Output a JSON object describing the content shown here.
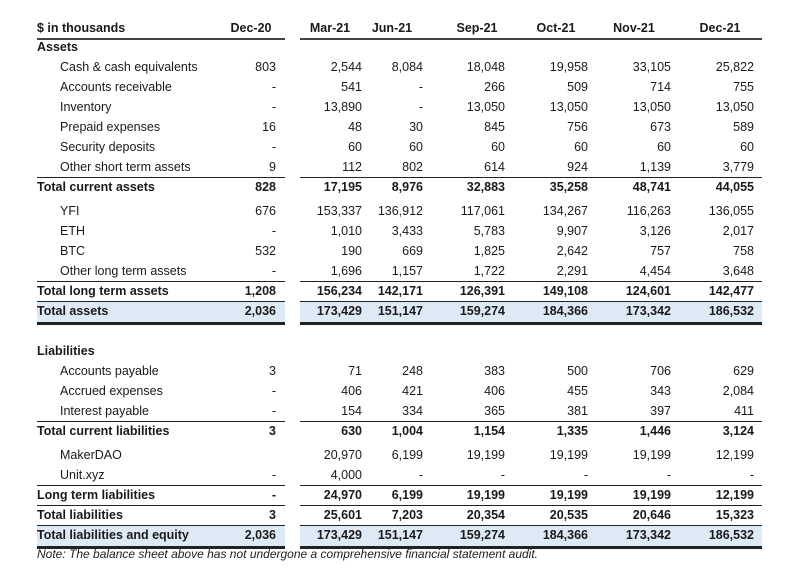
{
  "header": {
    "label": "$ in thousands",
    "columns": [
      "Dec-20",
      "Mar-21",
      "Jun-21",
      "Sep-21",
      "Oct-21",
      "Nov-21",
      "Dec-21"
    ]
  },
  "rows": [
    {
      "label": "Assets",
      "style": "section",
      "values": []
    },
    {
      "label": "Cash & cash equivalents",
      "style": "item",
      "values": [
        "803",
        "2,544",
        "8,084",
        "18,048",
        "19,958",
        "33,105",
        "25,822"
      ]
    },
    {
      "label": "Accounts receivable",
      "style": "item",
      "values": [
        "-",
        "541",
        "-",
        "266",
        "509",
        "714",
        "755"
      ]
    },
    {
      "label": "Inventory",
      "style": "item",
      "values": [
        "-",
        "13,890",
        "-",
        "13,050",
        "13,050",
        "13,050",
        "13,050"
      ]
    },
    {
      "label": "Prepaid expenses",
      "style": "item",
      "values": [
        "16",
        "48",
        "30",
        "845",
        "756",
        "673",
        "589"
      ]
    },
    {
      "label": "Security deposits",
      "style": "item",
      "values": [
        "-",
        "60",
        "60",
        "60",
        "60",
        "60",
        "60"
      ]
    },
    {
      "label": "Other short term assets",
      "style": "item-last",
      "values": [
        "9",
        "112",
        "802",
        "614",
        "924",
        "1,139",
        "3,779"
      ]
    },
    {
      "label": "Total current assets",
      "style": "subtotal",
      "values": [
        "828",
        "17,195",
        "8,976",
        "32,883",
        "35,258",
        "48,741",
        "44,055"
      ]
    },
    {
      "label": "YFI",
      "style": "item",
      "values": [
        "676",
        "153,337",
        "136,912",
        "117,061",
        "134,267",
        "116,263",
        "136,055"
      ]
    },
    {
      "label": "ETH",
      "style": "item",
      "values": [
        "-",
        "1,010",
        "3,433",
        "5,783",
        "9,907",
        "3,126",
        "2,017"
      ]
    },
    {
      "label": "BTC",
      "style": "item",
      "values": [
        "532",
        "190",
        "669",
        "1,825",
        "2,642",
        "757",
        "758"
      ]
    },
    {
      "label": "Other long term assets",
      "style": "item-last",
      "values": [
        "-",
        "1,696",
        "1,157",
        "1,722",
        "2,291",
        "4,454",
        "3,648"
      ]
    },
    {
      "label": "Total long term assets",
      "style": "subtotal-ruled",
      "values": [
        "1,208",
        "156,234",
        "142,171",
        "126,391",
        "149,108",
        "124,601",
        "142,477"
      ]
    },
    {
      "label": "Total assets",
      "style": "total",
      "values": [
        "2,036",
        "173,429",
        "151,147",
        "159,274",
        "184,366",
        "173,342",
        "186,532"
      ]
    },
    {
      "label": "Liabilities",
      "style": "section",
      "values": []
    },
    {
      "label": "Accounts payable",
      "style": "item",
      "values": [
        "3",
        "71",
        "248",
        "383",
        "500",
        "706",
        "629"
      ]
    },
    {
      "label": "Accrued expenses",
      "style": "item",
      "values": [
        "-",
        "406",
        "421",
        "406",
        "455",
        "343",
        "2,084"
      ]
    },
    {
      "label": "Interest payable",
      "style": "item-last",
      "values": [
        "-",
        "154",
        "334",
        "365",
        "381",
        "397",
        "411"
      ]
    },
    {
      "label": "Total current liabilities",
      "style": "subtotal",
      "values": [
        "3",
        "630",
        "1,004",
        "1,154",
        "1,335",
        "1,446",
        "3,124"
      ]
    },
    {
      "label": "MakerDAO",
      "style": "item",
      "values": [
        "",
        "20,970",
        "6,199",
        "19,199",
        "19,199",
        "19,199",
        "12,199"
      ]
    },
    {
      "label": "Unit.xyz",
      "style": "item-last",
      "values": [
        "-",
        "4,000",
        "-",
        "-",
        "-",
        "-",
        "-"
      ]
    },
    {
      "label": "Long term liabilities",
      "style": "subtotal-ruled",
      "values": [
        "-",
        "24,970",
        "6,199",
        "19,199",
        "19,199",
        "19,199",
        "12,199"
      ]
    },
    {
      "label": "Total liabilities",
      "style": "subtotal-ruled",
      "values": [
        "3",
        "25,601",
        "7,203",
        "20,354",
        "20,535",
        "20,646",
        "15,323"
      ]
    },
    {
      "label": "Total liabilities and equity",
      "style": "total",
      "values": [
        "2,036",
        "173,429",
        "151,147",
        "159,274",
        "184,366",
        "173,342",
        "186,532"
      ]
    }
  ],
  "note": "Note: The balance sheet above has not undergone a comprehensive financial statement audit.",
  "colors": {
    "total_shade": "#dde9f5",
    "rule": "#222222"
  }
}
